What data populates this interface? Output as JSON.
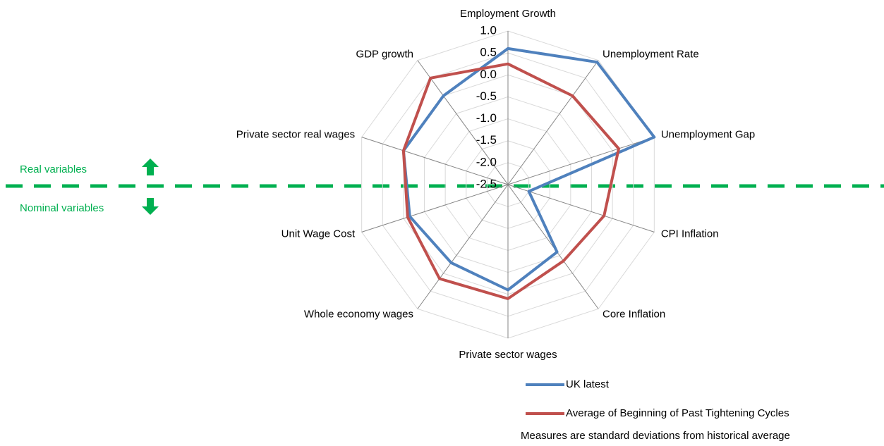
{
  "chart_data": {
    "type": "radar",
    "categories": [
      "Employment Growth",
      "Unemployment Rate",
      "Unemployment Gap",
      "CPI Inflation",
      "Core Inflation",
      "Private sector wages",
      "Whole economy wages",
      "Unit Wage Cost",
      "Private sector real wages",
      "GDP growth"
    ],
    "series": [
      {
        "name": "UK latest",
        "color": "#4f81bd",
        "values": [
          0.6,
          0.95,
          1.0,
          -2.0,
          -0.6,
          -0.1,
          -0.3,
          -0.15,
          0.0,
          0.0
        ]
      },
      {
        "name": "Average of Beginning of Past Tightening Cycles",
        "color": "#c0504d",
        "values": [
          0.25,
          0.0,
          0.15,
          -0.2,
          -0.35,
          0.1,
          0.15,
          -0.1,
          0.0,
          0.5
        ]
      }
    ],
    "ylim": [
      -2.5,
      1.0
    ],
    "yticks": [
      {
        "value": 1.0,
        "label": "1.0"
      },
      0.5,
      {
        "value": 0.0,
        "label": "0.0"
      },
      -0.5,
      {
        "value": -1.0,
        "label": "-1.0"
      },
      -1.5,
      {
        "value": -2.0,
        "label": "-2.0"
      },
      -2.5
    ],
    "grid": true,
    "annotations": [
      "Real variables",
      "Nominal variables"
    ],
    "note": "Measures are standard deviations from historical average"
  }
}
